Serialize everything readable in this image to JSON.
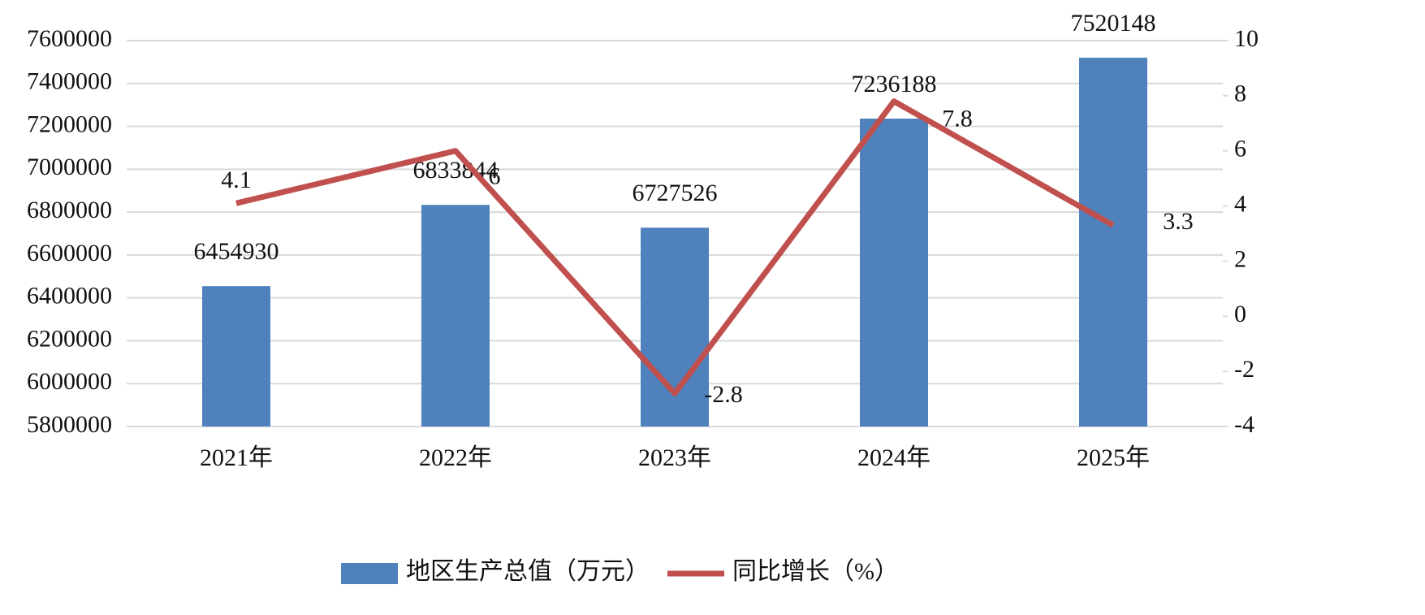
{
  "chart_data": {
    "type": "bar",
    "categories": [
      "2021年",
      "2022年",
      "2023年",
      "2024年",
      "2025年"
    ],
    "series": [
      {
        "name": "地区生产总值（万元）",
        "type": "bar",
        "color": "#4f81bd",
        "values": [
          6454930,
          6833844,
          6727526,
          7236188,
          7520148
        ]
      },
      {
        "name": "同比增长（%）",
        "type": "line",
        "axis": "y2",
        "color": "#c0504d",
        "values": [
          4.1,
          6,
          -2.8,
          7.8,
          3.3
        ]
      }
    ],
    "ylim": [
      5800000,
      7600000
    ],
    "yticks": [
      5800000,
      6000000,
      6200000,
      6400000,
      6600000,
      6800000,
      7000000,
      7200000,
      7400000,
      7600000
    ],
    "y2lim": [
      -4,
      10
    ],
    "y2ticks": [
      -4,
      -2,
      0,
      2,
      4,
      6,
      8,
      10
    ],
    "grid": true,
    "legend": "bottom"
  }
}
